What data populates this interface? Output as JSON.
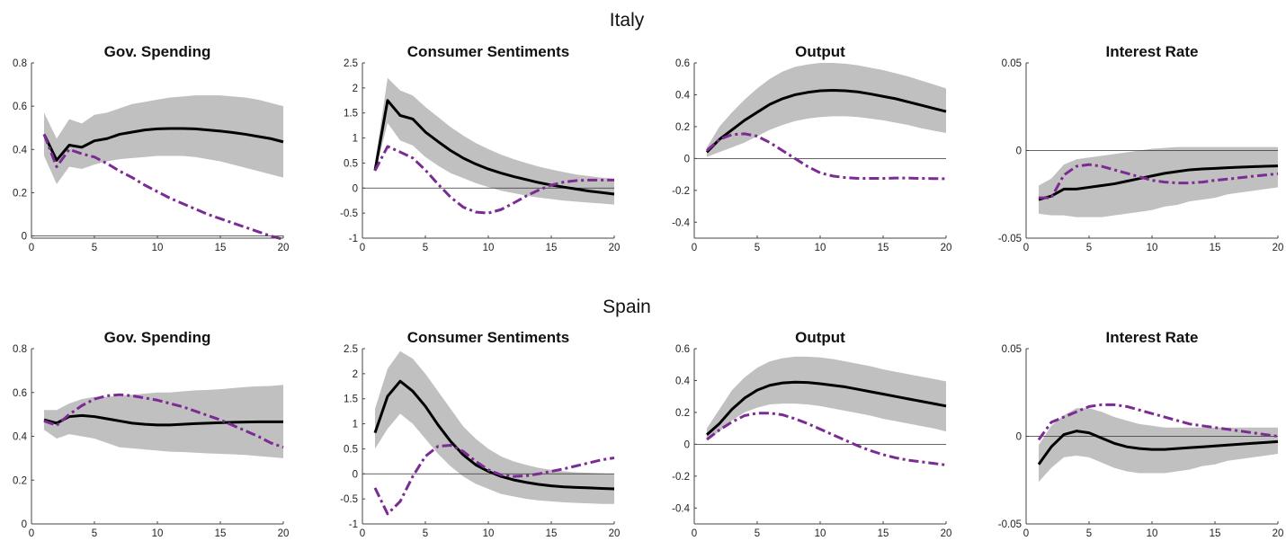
{
  "figure": {
    "row_titles": [
      "Italy",
      "Spain"
    ],
    "colors": {
      "band": "#c0c0c0",
      "solid_line": "#000000",
      "dashed_line": "#7b2b93",
      "zero_line": "#333333",
      "axis": "#444444"
    }
  },
  "chart_data": [
    {
      "type": "line",
      "row": "Italy",
      "title": "Gov. Spending",
      "x": [
        1,
        2,
        3,
        4,
        5,
        6,
        7,
        8,
        9,
        10,
        11,
        12,
        13,
        14,
        15,
        16,
        17,
        18,
        19,
        20
      ],
      "xlim": [
        0,
        20
      ],
      "xticks": [
        0,
        5,
        10,
        15,
        20
      ],
      "ylim": [
        -0.01,
        0.8
      ],
      "yticks": [
        0,
        0.2,
        0.4,
        0.6,
        0.8
      ],
      "yticklabels": [
        "0",
        "0.2",
        "0.4",
        "0.6",
        "0.8"
      ],
      "zero_line": true,
      "band": {
        "upper": [
          0.57,
          0.45,
          0.54,
          0.52,
          0.56,
          0.57,
          0.59,
          0.61,
          0.62,
          0.63,
          0.64,
          0.645,
          0.65,
          0.65,
          0.65,
          0.645,
          0.64,
          0.63,
          0.615,
          0.6
        ],
        "lower": [
          0.37,
          0.24,
          0.32,
          0.31,
          0.33,
          0.345,
          0.355,
          0.36,
          0.365,
          0.37,
          0.37,
          0.37,
          0.365,
          0.355,
          0.345,
          0.33,
          0.315,
          0.3,
          0.285,
          0.27
        ]
      },
      "series": [
        {
          "style": "solid",
          "values": [
            0.47,
            0.35,
            0.42,
            0.41,
            0.44,
            0.45,
            0.47,
            0.48,
            0.49,
            0.495,
            0.497,
            0.497,
            0.495,
            0.49,
            0.485,
            0.478,
            0.47,
            0.46,
            0.45,
            0.435
          ]
        },
        {
          "style": "dashed",
          "values": [
            0.47,
            0.32,
            0.4,
            0.38,
            0.365,
            0.335,
            0.3,
            0.27,
            0.235,
            0.205,
            0.175,
            0.15,
            0.125,
            0.1,
            0.08,
            0.06,
            0.04,
            0.02,
            0.0,
            -0.015
          ]
        }
      ]
    },
    {
      "type": "line",
      "row": "Italy",
      "title": "Consumer Sentiments",
      "x": [
        1,
        2,
        3,
        4,
        5,
        6,
        7,
        8,
        9,
        10,
        11,
        12,
        13,
        14,
        15,
        16,
        17,
        18,
        19,
        20
      ],
      "xlim": [
        0,
        20
      ],
      "xticks": [
        0,
        5,
        10,
        15,
        20
      ],
      "ylim": [
        -1,
        2.5
      ],
      "yticks": [
        -1,
        -0.5,
        0,
        0.5,
        1,
        1.5,
        2,
        2.5
      ],
      "yticklabels": [
        "-1",
        "-0.5",
        "0",
        "0.5",
        "1",
        "1.5",
        "2",
        "2.5"
      ],
      "zero_line": true,
      "band": {
        "upper": [
          0.5,
          2.2,
          1.95,
          1.85,
          1.62,
          1.42,
          1.22,
          1.05,
          0.9,
          0.78,
          0.67,
          0.58,
          0.5,
          0.43,
          0.37,
          0.32,
          0.27,
          0.24,
          0.21,
          0.19
        ],
        "lower": [
          0.3,
          1.3,
          0.95,
          0.85,
          0.62,
          0.45,
          0.3,
          0.2,
          0.1,
          0.02,
          -0.05,
          -0.1,
          -0.15,
          -0.19,
          -0.22,
          -0.25,
          -0.27,
          -0.29,
          -0.31,
          -0.33
        ]
      },
      "series": [
        {
          "style": "solid",
          "values": [
            0.35,
            1.75,
            1.45,
            1.38,
            1.12,
            0.93,
            0.75,
            0.6,
            0.48,
            0.38,
            0.3,
            0.23,
            0.17,
            0.11,
            0.06,
            0.02,
            -0.02,
            -0.06,
            -0.09,
            -0.12
          ]
        },
        {
          "style": "dashed",
          "values": [
            0.35,
            0.83,
            0.72,
            0.6,
            0.36,
            0.08,
            -0.18,
            -0.38,
            -0.48,
            -0.5,
            -0.43,
            -0.3,
            -0.16,
            -0.04,
            0.06,
            0.12,
            0.15,
            0.16,
            0.16,
            0.16
          ]
        }
      ]
    },
    {
      "type": "line",
      "row": "Italy",
      "title": "Output",
      "x": [
        1,
        2,
        3,
        4,
        5,
        6,
        7,
        8,
        9,
        10,
        11,
        12,
        13,
        14,
        15,
        16,
        17,
        18,
        19,
        20
      ],
      "xlim": [
        0,
        20
      ],
      "xticks": [
        0,
        5,
        10,
        15,
        20
      ],
      "ylim": [
        -0.5,
        0.6
      ],
      "yticks": [
        -0.4,
        -0.2,
        0,
        0.2,
        0.4,
        0.6
      ],
      "yticklabels": [
        "-0.4",
        "-0.2",
        "0",
        "0.2",
        "0.4",
        "0.6"
      ],
      "zero_line": true,
      "band": {
        "upper": [
          0.07,
          0.2,
          0.29,
          0.37,
          0.44,
          0.5,
          0.545,
          0.575,
          0.59,
          0.6,
          0.6,
          0.595,
          0.585,
          0.57,
          0.555,
          0.535,
          0.515,
          0.49,
          0.465,
          0.44
        ],
        "lower": [
          0.01,
          0.04,
          0.07,
          0.1,
          0.14,
          0.18,
          0.21,
          0.235,
          0.25,
          0.26,
          0.265,
          0.265,
          0.26,
          0.25,
          0.24,
          0.225,
          0.21,
          0.19,
          0.175,
          0.16
        ]
      },
      "series": [
        {
          "style": "solid",
          "values": [
            0.04,
            0.12,
            0.18,
            0.24,
            0.29,
            0.34,
            0.375,
            0.4,
            0.415,
            0.425,
            0.428,
            0.425,
            0.418,
            0.405,
            0.39,
            0.375,
            0.355,
            0.335,
            0.315,
            0.295
          ]
        },
        {
          "style": "dashed",
          "values": [
            0.05,
            0.12,
            0.15,
            0.155,
            0.14,
            0.1,
            0.05,
            0.0,
            -0.05,
            -0.09,
            -0.11,
            -0.12,
            -0.125,
            -0.125,
            -0.125,
            -0.123,
            -0.123,
            -0.125,
            -0.126,
            -0.127
          ]
        }
      ]
    },
    {
      "type": "line",
      "row": "Italy",
      "title": "Interest Rate",
      "x": [
        1,
        2,
        3,
        4,
        5,
        6,
        7,
        8,
        9,
        10,
        11,
        12,
        13,
        14,
        15,
        16,
        17,
        18,
        19,
        20
      ],
      "xlim": [
        0,
        20
      ],
      "xticks": [
        0,
        5,
        10,
        15,
        20
      ],
      "ylim": [
        -0.05,
        0.05
      ],
      "yticks": [
        -0.05,
        0,
        0.05
      ],
      "yticklabels": [
        "-0.05",
        "0",
        "0.05"
      ],
      "zero_line": true,
      "band": {
        "upper": [
          -0.02,
          -0.016,
          -0.008,
          -0.005,
          -0.004,
          -0.003,
          -0.002,
          -0.001,
          0.0,
          0.001,
          0.0015,
          0.002,
          0.002,
          0.002,
          0.002,
          0.002,
          0.002,
          0.002,
          0.002,
          0.002
        ],
        "lower": [
          -0.036,
          -0.037,
          -0.037,
          -0.038,
          -0.038,
          -0.038,
          -0.037,
          -0.036,
          -0.035,
          -0.034,
          -0.032,
          -0.031,
          -0.029,
          -0.028,
          -0.027,
          -0.025,
          -0.024,
          -0.023,
          -0.022,
          -0.021
        ]
      },
      "series": [
        {
          "style": "solid",
          "values": [
            -0.028,
            -0.026,
            -0.022,
            -0.022,
            -0.021,
            -0.02,
            -0.019,
            -0.0175,
            -0.016,
            -0.0145,
            -0.013,
            -0.012,
            -0.011,
            -0.0105,
            -0.0102,
            -0.0098,
            -0.0095,
            -0.0092,
            -0.009,
            -0.0088
          ]
        },
        {
          "style": "dashed",
          "values": [
            -0.027,
            -0.027,
            -0.014,
            -0.009,
            -0.008,
            -0.009,
            -0.011,
            -0.013,
            -0.015,
            -0.017,
            -0.018,
            -0.0185,
            -0.0185,
            -0.018,
            -0.017,
            -0.0163,
            -0.0155,
            -0.0147,
            -0.014,
            -0.0132
          ]
        }
      ]
    },
    {
      "type": "line",
      "row": "Spain",
      "title": "Gov. Spending",
      "x": [
        1,
        2,
        3,
        4,
        5,
        6,
        7,
        8,
        9,
        10,
        11,
        12,
        13,
        14,
        15,
        16,
        17,
        18,
        19,
        20
      ],
      "xlim": [
        0,
        20
      ],
      "xticks": [
        0,
        5,
        10,
        15,
        20
      ],
      "ylim": [
        0,
        0.8
      ],
      "yticks": [
        0,
        0.2,
        0.4,
        0.6,
        0.8
      ],
      "yticklabels": [
        "0",
        "0.2",
        "0.4",
        "0.6",
        "0.8"
      ],
      "zero_line": false,
      "band": {
        "upper": [
          0.52,
          0.52,
          0.55,
          0.57,
          0.58,
          0.58,
          0.585,
          0.59,
          0.595,
          0.6,
          0.6,
          0.605,
          0.61,
          0.612,
          0.615,
          0.62,
          0.625,
          0.628,
          0.63,
          0.635
        ],
        "lower": [
          0.43,
          0.39,
          0.41,
          0.4,
          0.39,
          0.37,
          0.35,
          0.345,
          0.34,
          0.335,
          0.33,
          0.328,
          0.325,
          0.322,
          0.32,
          0.318,
          0.315,
          0.31,
          0.305,
          0.3
        ]
      },
      "series": [
        {
          "style": "solid",
          "values": [
            0.475,
            0.46,
            0.49,
            0.495,
            0.49,
            0.48,
            0.47,
            0.46,
            0.455,
            0.452,
            0.452,
            0.455,
            0.458,
            0.46,
            0.462,
            0.464,
            0.465,
            0.466,
            0.466,
            0.466
          ]
        },
        {
          "style": "dashed",
          "values": [
            0.47,
            0.45,
            0.5,
            0.54,
            0.57,
            0.585,
            0.59,
            0.585,
            0.575,
            0.565,
            0.55,
            0.535,
            0.515,
            0.495,
            0.475,
            0.45,
            0.425,
            0.4,
            0.37,
            0.35
          ]
        }
      ]
    },
    {
      "type": "line",
      "row": "Spain",
      "title": "Consumer Sentiments",
      "x": [
        1,
        2,
        3,
        4,
        5,
        6,
        7,
        8,
        9,
        10,
        11,
        12,
        13,
        14,
        15,
        16,
        17,
        18,
        19,
        20
      ],
      "xlim": [
        0,
        20
      ],
      "xticks": [
        0,
        5,
        10,
        15,
        20
      ],
      "ylim": [
        -1,
        2.5
      ],
      "yticks": [
        -1,
        -0.5,
        0,
        0.5,
        1,
        1.5,
        2,
        2.5
      ],
      "yticklabels": [
        "-1",
        "-0.5",
        "0",
        "0.5",
        "1",
        "1.5",
        "2",
        "2.5"
      ],
      "zero_line": true,
      "band": {
        "upper": [
          1.3,
          2.1,
          2.45,
          2.3,
          2.0,
          1.65,
          1.3,
          0.95,
          0.7,
          0.5,
          0.35,
          0.25,
          0.18,
          0.12,
          0.08,
          0.05,
          0.03,
          0.02,
          0.01,
          0.0
        ],
        "lower": [
          0.5,
          0.9,
          1.2,
          1.0,
          0.7,
          0.4,
          0.15,
          -0.05,
          -0.2,
          -0.3,
          -0.4,
          -0.45,
          -0.5,
          -0.53,
          -0.55,
          -0.57,
          -0.58,
          -0.59,
          -0.6,
          -0.6
        ]
      },
      "series": [
        {
          "style": "solid",
          "values": [
            0.82,
            1.55,
            1.85,
            1.65,
            1.35,
            0.98,
            0.65,
            0.38,
            0.18,
            0.05,
            -0.05,
            -0.12,
            -0.17,
            -0.21,
            -0.24,
            -0.26,
            -0.27,
            -0.28,
            -0.29,
            -0.3
          ]
        },
        {
          "style": "dashed",
          "values": [
            -0.28,
            -0.8,
            -0.55,
            -0.05,
            0.35,
            0.55,
            0.57,
            0.45,
            0.25,
            0.08,
            -0.02,
            -0.05,
            -0.04,
            0.0,
            0.05,
            0.1,
            0.16,
            0.22,
            0.28,
            0.32
          ]
        }
      ]
    },
    {
      "type": "line",
      "row": "Spain",
      "title": "Output",
      "x": [
        1,
        2,
        3,
        4,
        5,
        6,
        7,
        8,
        9,
        10,
        11,
        12,
        13,
        14,
        15,
        16,
        17,
        18,
        19,
        20
      ],
      "xlim": [
        0,
        20
      ],
      "xticks": [
        0,
        5,
        10,
        15,
        20
      ],
      "ylim": [
        -0.5,
        0.6
      ],
      "yticks": [
        -0.4,
        -0.2,
        0,
        0.2,
        0.4,
        0.6
      ],
      "yticklabels": [
        "-0.4",
        "-0.2",
        "0",
        "0.2",
        "0.4",
        "0.6"
      ],
      "zero_line": true,
      "band": {
        "upper": [
          0.1,
          0.22,
          0.34,
          0.42,
          0.48,
          0.52,
          0.54,
          0.55,
          0.55,
          0.545,
          0.535,
          0.52,
          0.505,
          0.49,
          0.47,
          0.455,
          0.44,
          0.425,
          0.41,
          0.395
        ],
        "lower": [
          0.03,
          0.08,
          0.15,
          0.2,
          0.23,
          0.25,
          0.255,
          0.255,
          0.25,
          0.24,
          0.225,
          0.21,
          0.195,
          0.18,
          0.16,
          0.145,
          0.13,
          0.115,
          0.1,
          0.08
        ]
      },
      "series": [
        {
          "style": "solid",
          "values": [
            0.06,
            0.13,
            0.22,
            0.29,
            0.34,
            0.37,
            0.385,
            0.39,
            0.388,
            0.38,
            0.37,
            0.36,
            0.345,
            0.33,
            0.315,
            0.3,
            0.285,
            0.27,
            0.255,
            0.24
          ]
        },
        {
          "style": "dashed",
          "values": [
            0.03,
            0.09,
            0.14,
            0.18,
            0.195,
            0.195,
            0.185,
            0.16,
            0.13,
            0.095,
            0.06,
            0.025,
            -0.01,
            -0.04,
            -0.065,
            -0.085,
            -0.1,
            -0.11,
            -0.12,
            -0.13
          ]
        }
      ]
    },
    {
      "type": "line",
      "row": "Spain",
      "title": "Interest Rate",
      "x": [
        1,
        2,
        3,
        4,
        5,
        6,
        7,
        8,
        9,
        10,
        11,
        12,
        13,
        14,
        15,
        16,
        17,
        18,
        19,
        20
      ],
      "xlim": [
        0,
        20
      ],
      "xticks": [
        0,
        5,
        10,
        15,
        20
      ],
      "ylim": [
        -0.05,
        0.05
      ],
      "yticks": [
        -0.05,
        0,
        0.05
      ],
      "yticklabels": [
        "-0.05",
        "0",
        "0.05"
      ],
      "zero_line": true,
      "band": {
        "upper": [
          -0.005,
          0.006,
          0.012,
          0.016,
          0.016,
          0.014,
          0.011,
          0.009,
          0.007,
          0.006,
          0.005,
          0.005,
          0.005,
          0.005,
          0.005,
          0.005,
          0.005,
          0.005,
          0.005,
          0.005
        ],
        "lower": [
          -0.026,
          -0.018,
          -0.012,
          -0.011,
          -0.012,
          -0.015,
          -0.018,
          -0.02,
          -0.021,
          -0.021,
          -0.021,
          -0.02,
          -0.019,
          -0.017,
          -0.016,
          -0.014,
          -0.013,
          -0.012,
          -0.011,
          -0.01
        ]
      },
      "series": [
        {
          "style": "solid",
          "values": [
            -0.016,
            -0.006,
            0.001,
            0.003,
            0.002,
            -0.001,
            -0.004,
            -0.006,
            -0.007,
            -0.0075,
            -0.0075,
            -0.007,
            -0.0065,
            -0.006,
            -0.0055,
            -0.005,
            -0.0045,
            -0.004,
            -0.0035,
            -0.003
          ]
        },
        {
          "style": "dashed",
          "values": [
            -0.002,
            0.008,
            0.011,
            0.014,
            0.017,
            0.018,
            0.018,
            0.017,
            0.015,
            0.013,
            0.011,
            0.009,
            0.007,
            0.006,
            0.005,
            0.004,
            0.003,
            0.002,
            0.001,
            0.0
          ]
        }
      ]
    }
  ]
}
